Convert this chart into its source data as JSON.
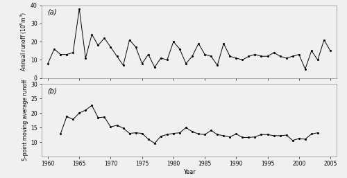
{
  "years": [
    1960,
    1961,
    1962,
    1963,
    1964,
    1965,
    1966,
    1967,
    1968,
    1969,
    1970,
    1971,
    1972,
    1973,
    1974,
    1975,
    1976,
    1977,
    1978,
    1979,
    1980,
    1981,
    1982,
    1983,
    1984,
    1985,
    1986,
    1987,
    1988,
    1989,
    1990,
    1991,
    1992,
    1993,
    1994,
    1995,
    1996,
    1997,
    1998,
    1999,
    2000,
    2001,
    2002,
    2003,
    2004,
    2005
  ],
  "annual_runoff": [
    8,
    16,
    13,
    13,
    14,
    38,
    11,
    24,
    18,
    22,
    17,
    12,
    7,
    21,
    17,
    8,
    13,
    6,
    11,
    10,
    20,
    16,
    8,
    12,
    19,
    13,
    12,
    7,
    19,
    12,
    11,
    10,
    12,
    13,
    12,
    12,
    14,
    12,
    11,
    12,
    13,
    5,
    15,
    10,
    21,
    15
  ],
  "ylabel_a": "Annual runoff (10$^8$m$^3$)",
  "ylabel_b": "5-point moving average runoff",
  "xlabel": "Year",
  "label_a": "(a)",
  "label_b": "(b)",
  "ylim_a": [
    0,
    40
  ],
  "ylim_b": [
    5,
    30
  ],
  "yticks_a": [
    0,
    10,
    20,
    30,
    40
  ],
  "yticks_b": [
    10,
    15,
    20,
    25,
    30
  ],
  "xticks": [
    1960,
    1965,
    1970,
    1975,
    1980,
    1985,
    1990,
    1995,
    2000,
    2005
  ],
  "line_color": "#000000",
  "bg_color": "#f0f0f0",
  "spine_color": "#888888",
  "tick_fontsize": 5.5,
  "label_fontsize": 5.5,
  "panel_label_fontsize": 7
}
